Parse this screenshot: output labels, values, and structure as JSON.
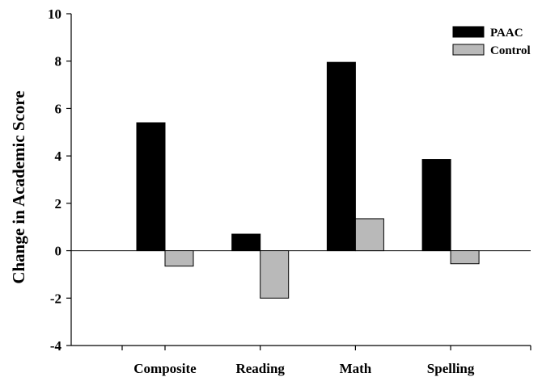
{
  "chart_data": {
    "type": "bar",
    "title": "",
    "xlabel": "",
    "ylabel": "Change in Academic Score",
    "categories": [
      "Composite",
      "Reading",
      "Math",
      "Spelling"
    ],
    "series": [
      {
        "name": "PAAC",
        "color": "#000000",
        "values": [
          5.4,
          0.7,
          7.95,
          3.85
        ]
      },
      {
        "name": "Control",
        "color": "#b9b9b9",
        "values": [
          -0.65,
          -2.0,
          1.35,
          -0.55
        ]
      }
    ],
    "ylim": [
      -4,
      10
    ],
    "yticks": [
      -4,
      -2,
      0,
      2,
      4,
      6,
      8,
      10
    ],
    "yticklabels": [
      "-4",
      "-2",
      "0",
      "2",
      "4",
      "6",
      "8",
      "10"
    ],
    "grid": false,
    "legend": "top-right",
    "zero_line": true
  }
}
